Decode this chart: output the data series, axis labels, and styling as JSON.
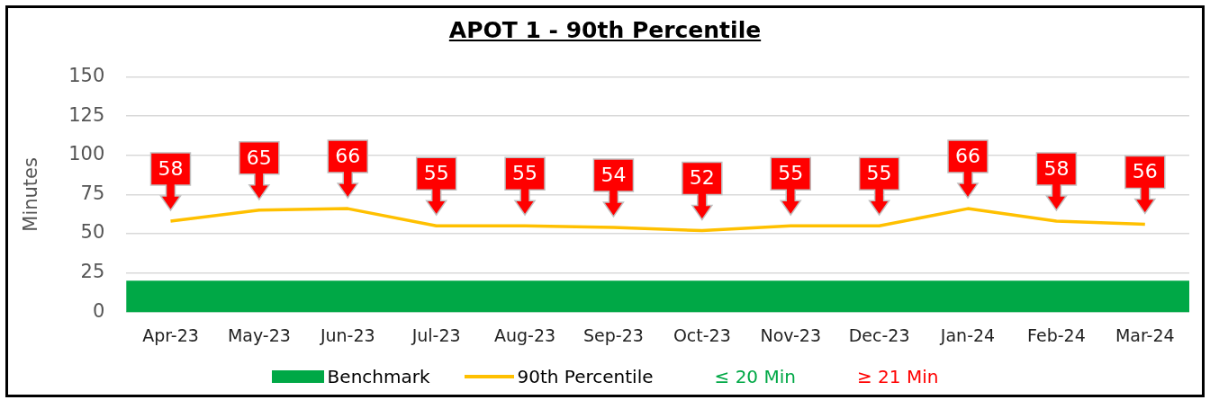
{
  "chart_data": {
    "type": "line",
    "title": "APOT 1 - 90th Percentile",
    "ylabel": "Minutes",
    "categories": [
      "Apr-23",
      "May-23",
      "Jun-23",
      "Jul-23",
      "Aug-23",
      "Sep-23",
      "Oct-23",
      "Nov-23",
      "Dec-23",
      "Jan-24",
      "Feb-24",
      "Mar-24"
    ],
    "series": [
      {
        "name": "90th Percentile",
        "color": "#ffc000",
        "values": [
          58,
          65,
          66,
          55,
          55,
          54,
          52,
          55,
          55,
          66,
          58,
          56
        ],
        "value_labels": [
          "58",
          "65",
          "66",
          "55",
          "55",
          "54",
          "52",
          "55",
          "55",
          "66",
          "58",
          "56"
        ]
      }
    ],
    "bands": [
      {
        "axis": "y",
        "from": 0,
        "to": 20,
        "label": "Benchmark",
        "color": "#00a846"
      }
    ],
    "ylim": [
      0,
      150
    ],
    "yticks": [
      0,
      25,
      50,
      75,
      100,
      125,
      150
    ],
    "grid": "y",
    "legend": "bottom",
    "marker": "none",
    "annotations": [
      "≤ 20 Min",
      "≥ 21 Min"
    ]
  }
}
